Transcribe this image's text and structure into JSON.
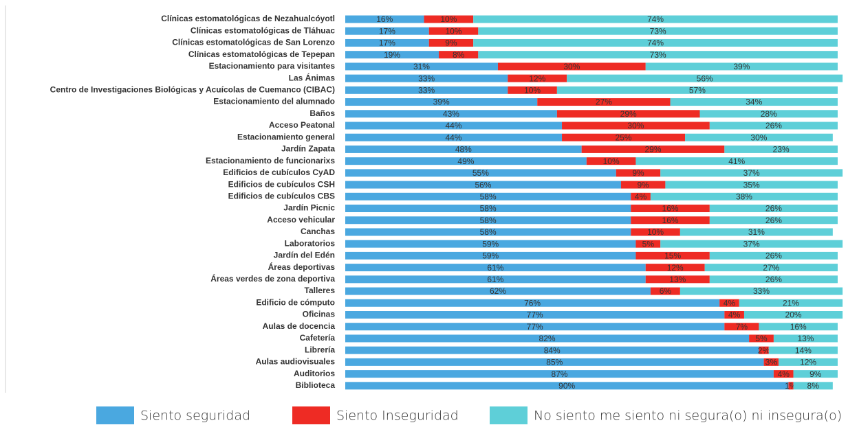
{
  "chart_data": {
    "type": "stacked-barh",
    "categories": [
      "Clínicas estomatológicas de Nezahualcóyotl",
      "Clínicas estomatológicas de Tláhuac",
      "Clínicas estomatológicas de San Lorenzo",
      "Clínicas estomatológicas de Tepepan",
      "Estacionamiento para visitantes",
      "Las Ánimas",
      "Centro de Investigaciones Biológicas y Acuícolas de Cuemanco (CIBAC)",
      "Estacionamiento del alumnado",
      "Baños",
      "Acceso Peatonal",
      "Estacionamiento general",
      "Jardín Zapata",
      "Estacionamiento de funcionarixs",
      "Edificios de cubículos CyAD",
      "Edificios de cubículos CSH",
      "Edificios de cubículos CBS",
      "Jardín Picnic",
      "Acceso vehicular",
      "Canchas",
      "Laboratorios",
      "Jardín del Edén",
      "Áreas deportivas",
      "Áreas verdes de zona deportiva",
      "Talleres",
      "Edificio de cómputo",
      "Oficinas",
      "Aulas de docencia",
      "Cafetería",
      "Librería",
      "Aulas audiovisuales",
      "Auditorios",
      "Biblioteca"
    ],
    "series": [
      {
        "name": "Siento seguridad",
        "color": "#4aa8e0",
        "values": [
          16,
          17,
          17,
          19,
          31,
          33,
          33,
          39,
          43,
          44,
          44,
          48,
          49,
          55,
          56,
          58,
          58,
          58,
          58,
          59,
          59,
          61,
          61,
          62,
          76,
          77,
          77,
          82,
          84,
          85,
          87,
          90
        ],
        "value_labels": [
          "16%",
          "17%",
          "17%",
          "19%",
          "31%",
          "33%",
          "33%",
          "39%",
          "43%",
          "44%",
          "44%",
          "48%",
          "49%",
          "55%",
          "56%",
          "58%",
          "58%",
          "58%",
          "58%",
          "59%",
          "59%",
          "61%",
          "61%",
          "62%",
          "76%",
          "77%",
          "77%",
          "82%",
          "84%",
          "85%",
          "87%",
          "90%"
        ]
      },
      {
        "name": "Siento Inseguridad",
        "color": "#ee2b24",
        "values": [
          10,
          10,
          9,
          8,
          30,
          12,
          10,
          27,
          29,
          30,
          25,
          29,
          10,
          9,
          9,
          4,
          16,
          16,
          10,
          5,
          15,
          12,
          13,
          6,
          4,
          4,
          7,
          5,
          2,
          3,
          4,
          1
        ],
        "value_labels": [
          "10%",
          "10%",
          "9%",
          "8%",
          "30%",
          "12%",
          "10%",
          "27%",
          "29%",
          "30%",
          "25%",
          "29%",
          "10%",
          "9%",
          "9%",
          "4%",
          "16%",
          "16%",
          "10%",
          "5%",
          "15%",
          "12%",
          "13%",
          "6%",
          "4%",
          "4%",
          "7%",
          "5%",
          "2%",
          "3%",
          "4%",
          "1%"
        ]
      },
      {
        "name": "No siento me siento ni segura(o) ni insegura(o)",
        "color": "#5ecfd8",
        "values": [
          74,
          73,
          74,
          73,
          39,
          56,
          57,
          34,
          28,
          26,
          30,
          23,
          41,
          37,
          35,
          38,
          26,
          26,
          31,
          37,
          26,
          27,
          26,
          33,
          21,
          20,
          16,
          13,
          14,
          12,
          9,
          8
        ],
        "value_labels": [
          "74%",
          "73%",
          "74%",
          "73%",
          "39%",
          "56%",
          "57%",
          "34%",
          "28%",
          "26%",
          "30%",
          "23%",
          "41%",
          "37%",
          "35%",
          "38%",
          "26%",
          "26%",
          "31%",
          "37%",
          "26%",
          "27%",
          "26%",
          "33%",
          "21%",
          "20%",
          "16%",
          "13%",
          "14%",
          "12%",
          "9%",
          "8%"
        ]
      }
    ],
    "xlim": [
      0,
      100
    ]
  }
}
